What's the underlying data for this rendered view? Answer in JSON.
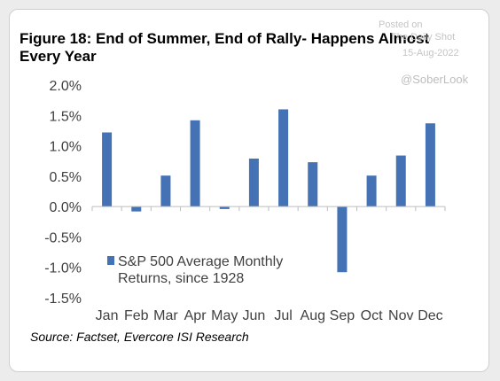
{
  "figure": {
    "title": "Figure 18: End of Summer, End of Rally- Happens Almost Every Year",
    "source": "Source: Factset, Evercore ISI Research"
  },
  "watermark": {
    "line1": "Posted on",
    "line2": "The Daily Shot",
    "line3": "15-Aug-2022",
    "handle": "@SoberLook"
  },
  "chart_data": {
    "type": "bar",
    "categories": [
      "Jan",
      "Feb",
      "Mar",
      "Apr",
      "May",
      "Jun",
      "Jul",
      "Aug",
      "Sep",
      "Oct",
      "Nov",
      "Dec"
    ],
    "series": [
      {
        "name": "S&P 500 Average Monthly Returns, since 1928",
        "values": [
          1.22,
          -0.08,
          0.51,
          1.42,
          -0.04,
          0.79,
          1.6,
          0.73,
          -1.08,
          0.51,
          0.84,
          1.37
        ]
      }
    ],
    "yticks": [
      "2.0%",
      "1.5%",
      "1.0%",
      "0.5%",
      "0.0%",
      "-0.5%",
      "-1.0%",
      "-1.5%"
    ],
    "ylim": [
      -1.5,
      2.0
    ],
    "legend_lines": [
      "S&P 500 Average Monthly",
      "Returns, since 1928"
    ],
    "legend_position": "lower-left",
    "grid": false,
    "color": "#4472b4"
  }
}
